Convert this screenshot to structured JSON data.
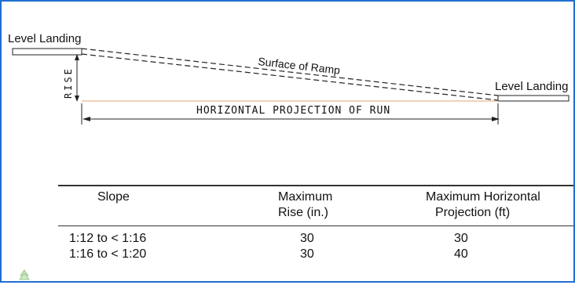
{
  "diagram": {
    "left_landing_label": "Level Landing",
    "right_landing_label": "Level Landing",
    "surface_label": "Surface of Ramp",
    "rise_label": "RISE",
    "run_label": "HORIZONTAL PROJECTION OF RUN",
    "colors": {
      "frame": "#1f6fd1",
      "run_line": "#e8a070",
      "ink": "#111111"
    }
  },
  "table": {
    "headers": [
      {
        "line1": "Slope",
        "line2": ""
      },
      {
        "line1": "Maximum",
        "line2": "Rise (in.)"
      },
      {
        "line1": "Maximum Horizontal",
        "line2": "Projection (ft)"
      }
    ],
    "rows": [
      {
        "slope": "1:12 to < 1:16",
        "rise": "30",
        "projection": "30"
      },
      {
        "slope": "1:16 to < 1:20",
        "rise": "30",
        "projection": "40"
      }
    ]
  },
  "corner_icon": "tree-icon"
}
